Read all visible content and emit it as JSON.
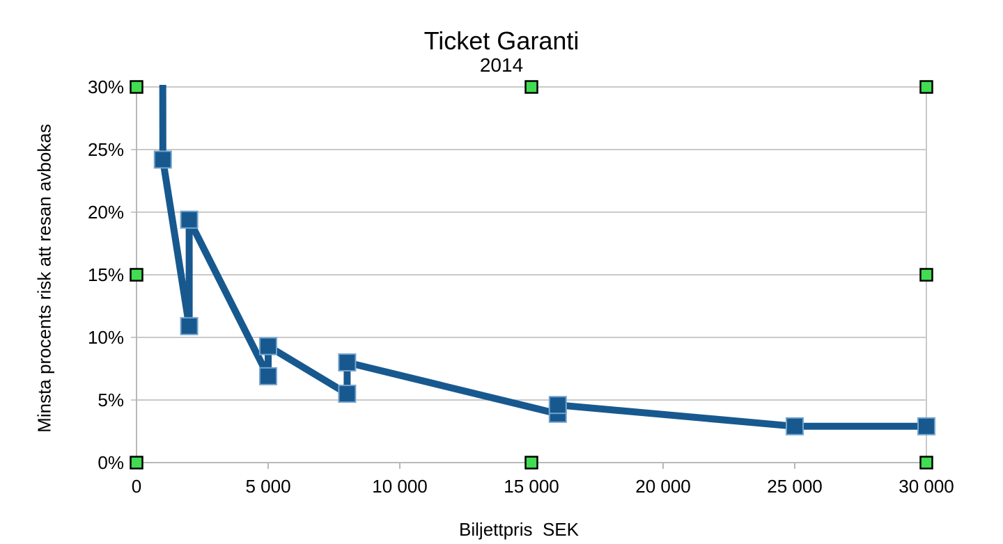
{
  "chart_data": {
    "type": "line",
    "title": "Ticket Garanti",
    "subtitle": "2014",
    "xlabel": "Biljettpris  SEK",
    "ylabel": "Minsta procents risk att resan avbokas",
    "xlim": [
      0,
      30000
    ],
    "ylim": [
      0,
      30
    ],
    "grid": "horizontal-only",
    "legend": "none",
    "x_ticks": [
      {
        "value": 0,
        "label": "0"
      },
      {
        "value": 5000,
        "label": "5 000"
      },
      {
        "value": 10000,
        "label": "10 000"
      },
      {
        "value": 15000,
        "label": "15 000"
      },
      {
        "value": 20000,
        "label": "20 000"
      },
      {
        "value": 25000,
        "label": "25 000"
      },
      {
        "value": 30000,
        "label": "30 000"
      }
    ],
    "y_ticks": [
      {
        "value": 0,
        "label": "0%"
      },
      {
        "value": 5,
        "label": "5%"
      },
      {
        "value": 10,
        "label": "10%"
      },
      {
        "value": 15,
        "label": "15%"
      },
      {
        "value": 20,
        "label": "20%"
      },
      {
        "value": 25,
        "label": "25%"
      },
      {
        "value": 30,
        "label": "30%"
      }
    ],
    "series": [
      {
        "name": "Minsta procents risk att resan avbokas",
        "color": "#17598f",
        "marker": "square",
        "marker_size": 24,
        "marker_border_color": "#74a3cd",
        "line_width": 10,
        "clipped_entry_point": {
          "x": 990,
          "y": 45
        },
        "points": [
          {
            "x": 1000,
            "y": 24.2
          },
          {
            "x": 2000,
            "y": 10.9
          },
          {
            "x": 2000,
            "y": 19.4
          },
          {
            "x": 5000,
            "y": 6.9
          },
          {
            "x": 5000,
            "y": 9.3
          },
          {
            "x": 8000,
            "y": 5.5
          },
          {
            "x": 8000,
            "y": 8.0
          },
          {
            "x": 16000,
            "y": 3.9
          },
          {
            "x": 16000,
            "y": 4.6
          },
          {
            "x": 25000,
            "y": 2.9
          },
          {
            "x": 30000,
            "y": 2.9
          }
        ]
      }
    ]
  },
  "selection": {
    "handle_fill": "#42dc52",
    "handle_border": "#000000",
    "handle_positions": [
      "top-left",
      "top-center",
      "top-right",
      "middle-left",
      "middle-right",
      "bottom-left",
      "bottom-center",
      "bottom-right"
    ]
  },
  "colors": {
    "background": "#ffffff",
    "grid": "#c9c9c9",
    "axis": "#b8b8b8",
    "text": "#000000"
  }
}
